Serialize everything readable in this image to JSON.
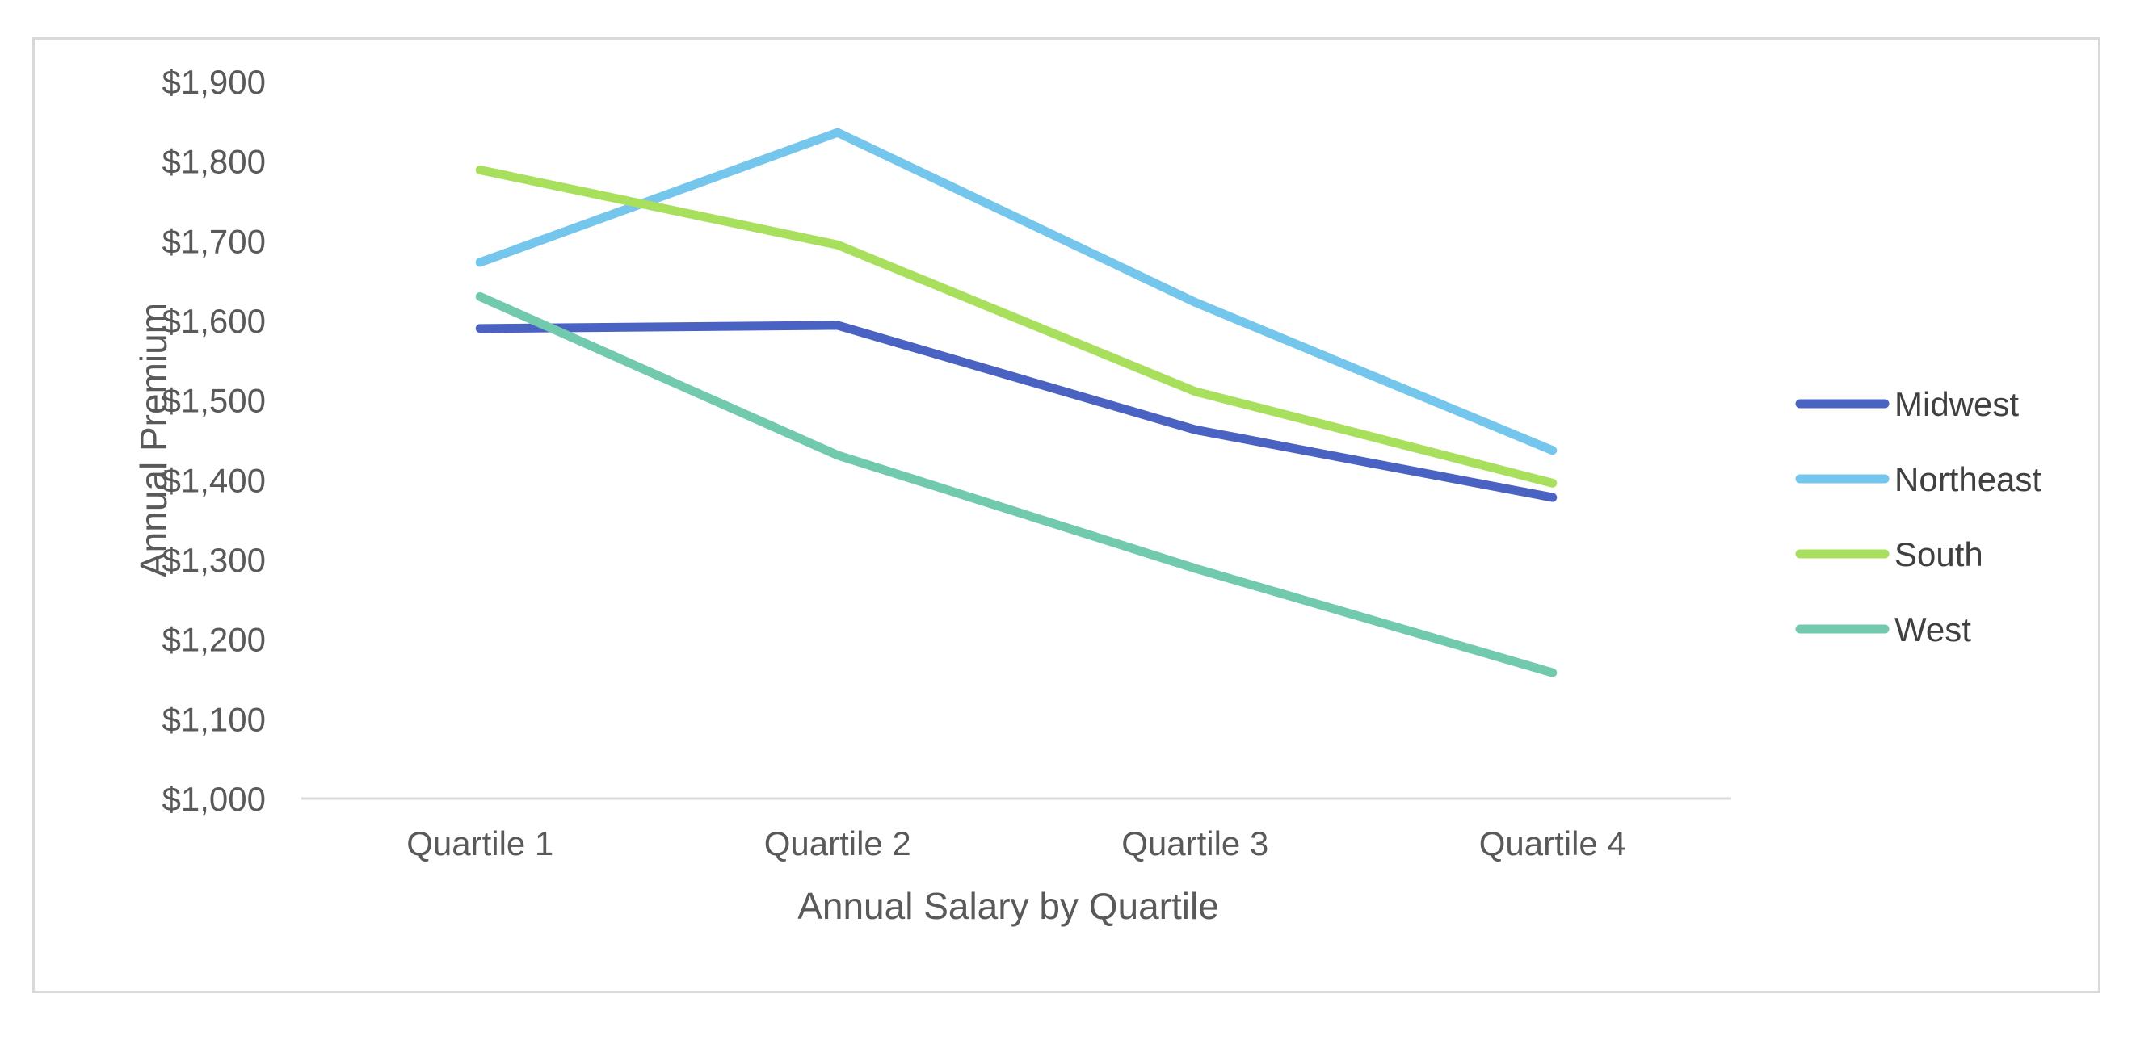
{
  "chart_data": {
    "type": "line",
    "title": "",
    "xlabel": "Annual Salary by Quartile",
    "ylabel": "Annual Premium",
    "categories": [
      "Quartile 1",
      "Quartile 2",
      "Quartile 3",
      "Quartile 4"
    ],
    "ylim": [
      1000,
      1900
    ],
    "yticks": [
      1000,
      1100,
      1200,
      1300,
      1400,
      1500,
      1600,
      1700,
      1800,
      1900
    ],
    "ytick_labels": [
      "$1,000",
      "$1,100",
      "$1,200",
      "$1,300",
      "$1,400",
      "$1,500",
      "$1,600",
      "$1,700",
      "$1,800",
      "$1,900"
    ],
    "grid": false,
    "legend_position": "right",
    "series": [
      {
        "name": "Midwest",
        "color": "#4A63C3",
        "values": [
          1590,
          1594,
          1463,
          1378
        ]
      },
      {
        "name": "Northeast",
        "color": "#75C6EC",
        "values": [
          1673,
          1836,
          1623,
          1437
        ]
      },
      {
        "name": "South",
        "color": "#A8E05E",
        "values": [
          1789,
          1695,
          1511,
          1396
        ]
      },
      {
        "name": "West",
        "color": "#71C9AE",
        "values": [
          1630,
          1431,
          1289,
          1158
        ]
      }
    ]
  }
}
